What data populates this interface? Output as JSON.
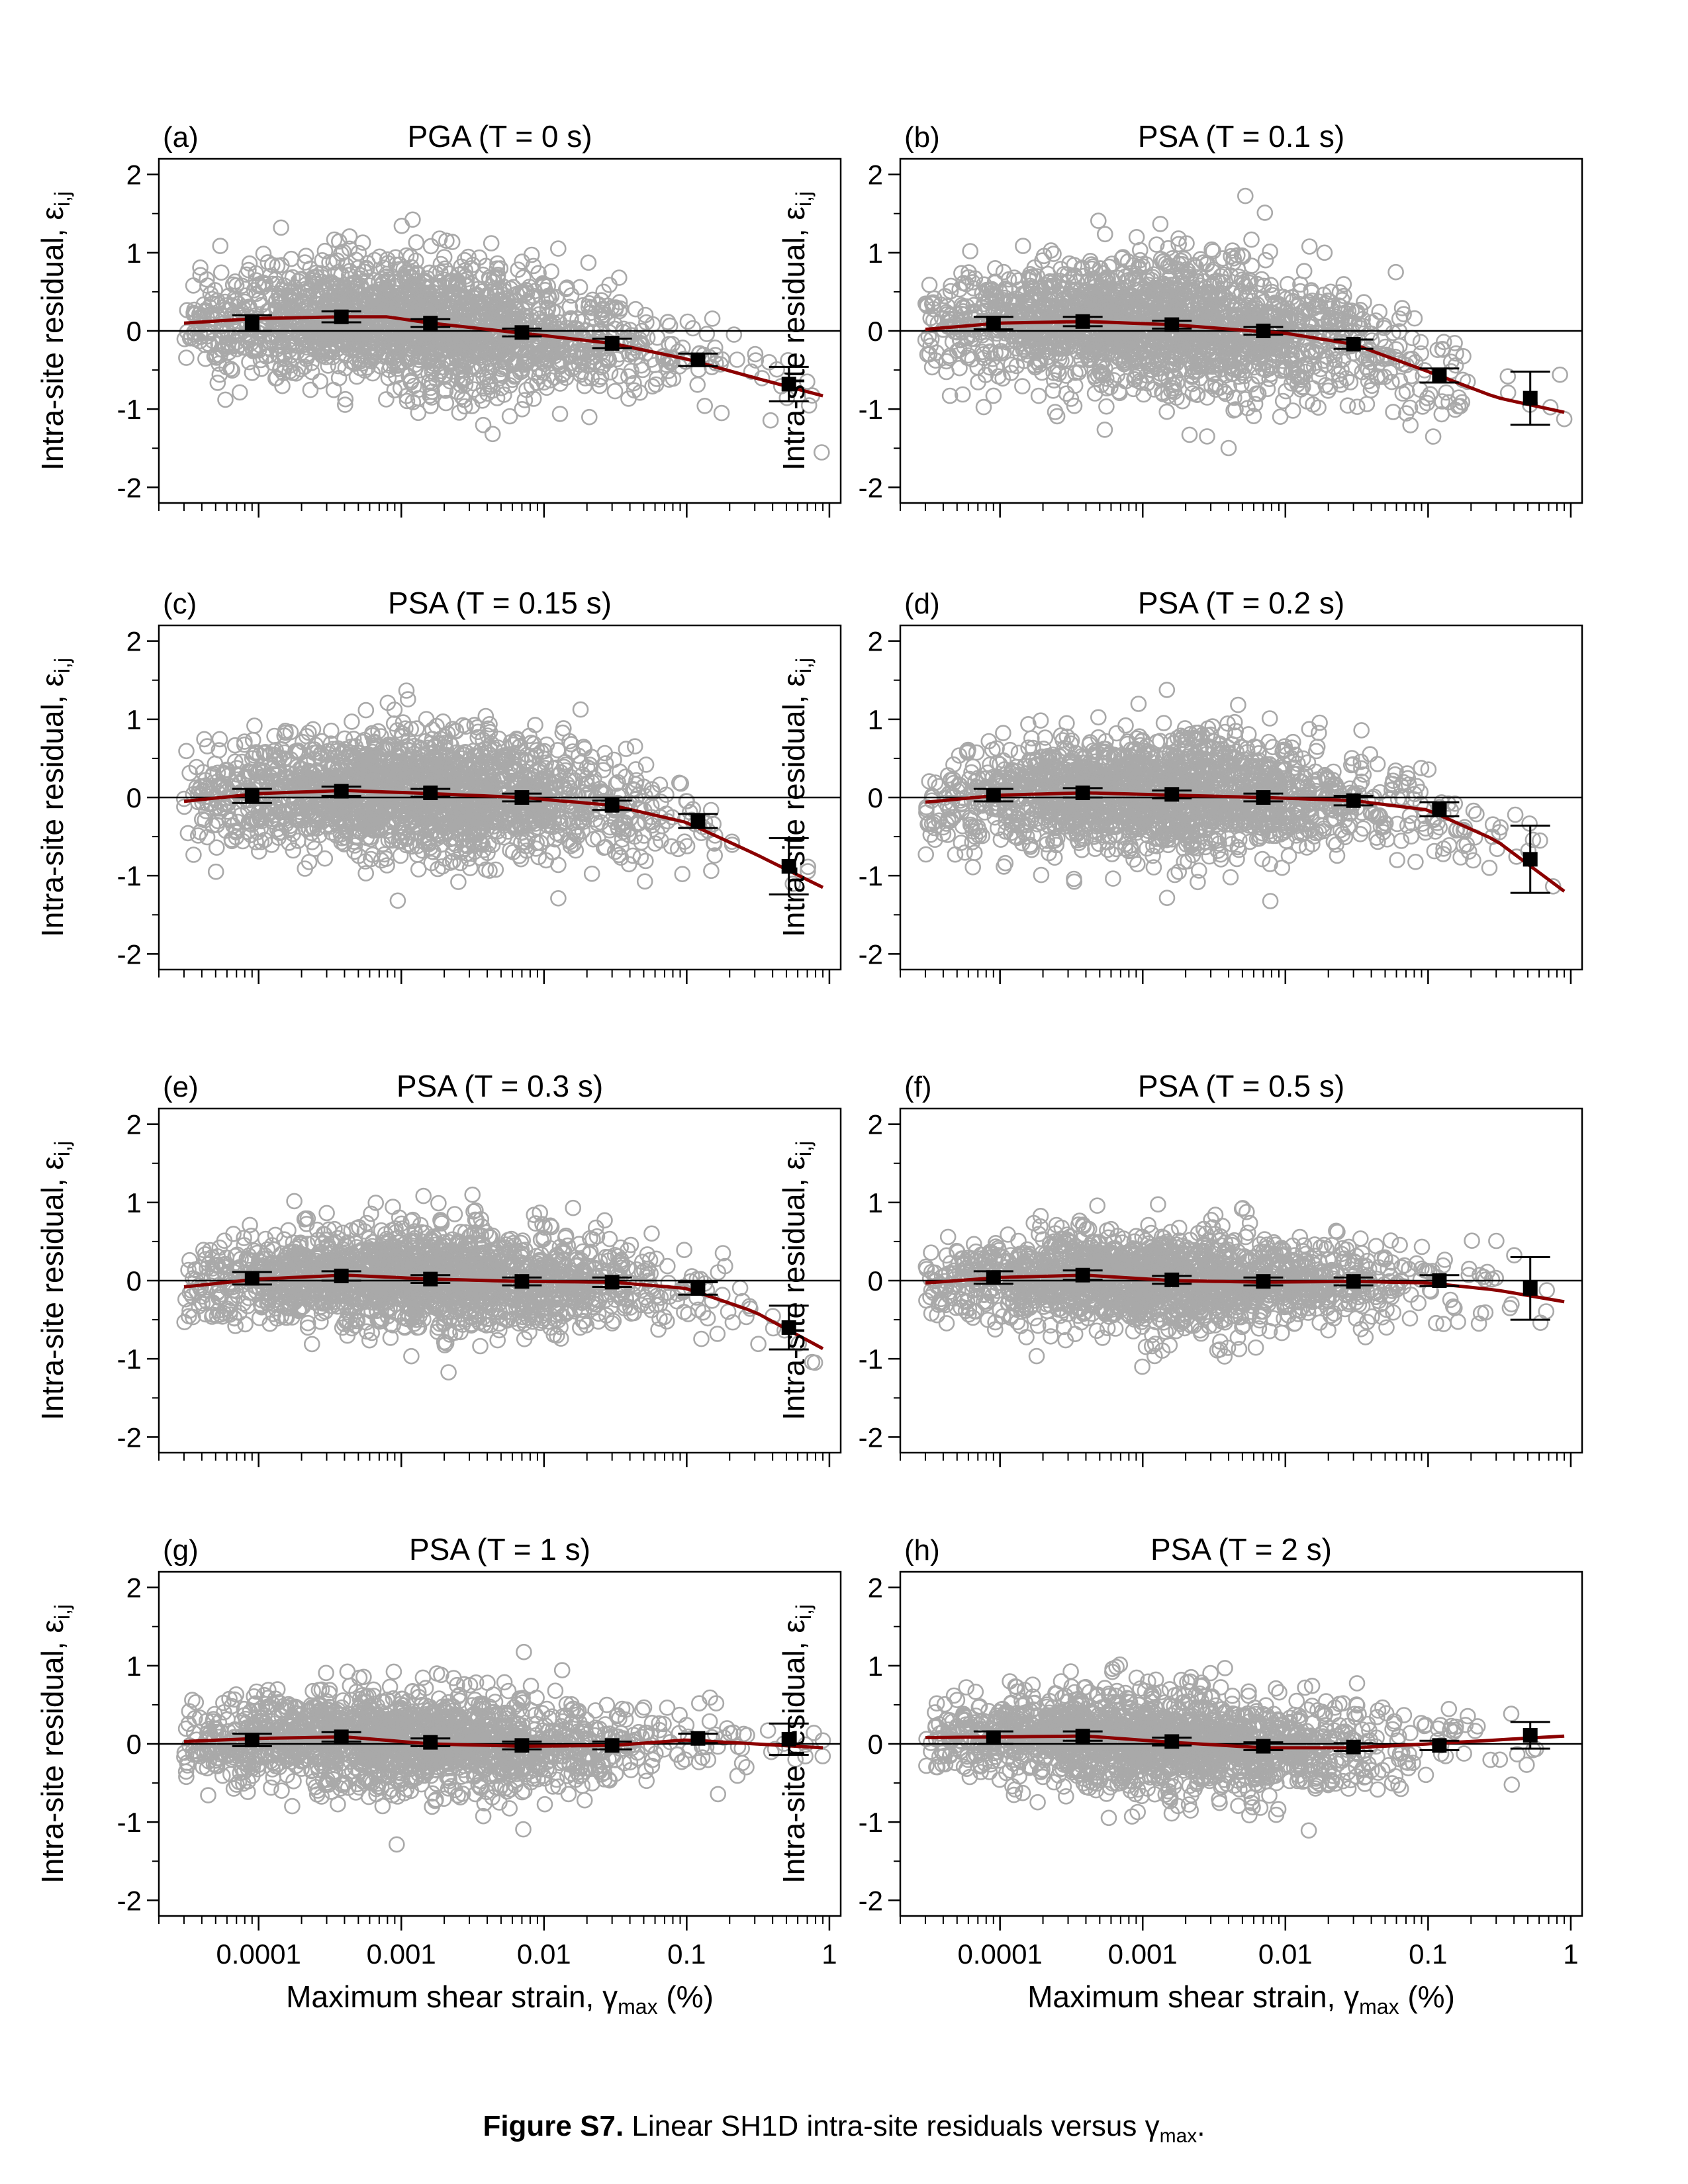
{
  "figure": {
    "caption_bold": "Figure S7.",
    "caption_text": " Linear SH1D intra-site residuals versus ",
    "caption_symbol": "γ",
    "caption_sub": "max",
    "caption_end": ".",
    "ylabel_main": "Intra-site residual, ",
    "ylabel_symbol": "ε",
    "ylabel_sub": "i,j",
    "xlabel_main": "Maximum shear strain, ",
    "xlabel_symbol": "γ",
    "xlabel_sub": "max",
    "xlabel_unit": " (%)"
  },
  "colors": {
    "scatter": "#a9a9a9",
    "fit": "#8b0000",
    "bin": "#000000"
  },
  "chart_data": [
    {
      "type": "scatter",
      "tag": "(a)",
      "title": "PGA (T = 0 s)",
      "xscale": "log",
      "xlim": [
        2e-05,
        1.2
      ],
      "ylim": [
        -2.2,
        2.2
      ],
      "xticks": [
        "0.0001",
        "0.001",
        "0.01",
        "0.1",
        "1"
      ],
      "yticks": [
        -2,
        -1,
        0,
        1,
        2
      ],
      "bins": [
        {
          "x": 9e-05,
          "y": 0.1,
          "e": 0.1
        },
        {
          "x": 0.00038,
          "y": 0.18,
          "e": 0.07
        },
        {
          "x": 0.0016,
          "y": 0.1,
          "e": 0.05
        },
        {
          "x": 0.007,
          "y": -0.02,
          "e": 0.05
        },
        {
          "x": 0.03,
          "y": -0.16,
          "e": 0.06
        },
        {
          "x": 0.12,
          "y": -0.37,
          "e": 0.08
        },
        {
          "x": 0.52,
          "y": -0.68,
          "e": 0.22
        }
      ],
      "fit": [
        [
          3e-05,
          0.1
        ],
        [
          0.0001,
          0.16
        ],
        [
          0.0004,
          0.18
        ],
        [
          0.0008,
          0.18
        ],
        [
          0.0016,
          0.1
        ],
        [
          0.004,
          0.02
        ],
        [
          0.01,
          -0.06
        ],
        [
          0.03,
          -0.16
        ],
        [
          0.1,
          -0.36
        ],
        [
          0.3,
          -0.6
        ],
        [
          0.9,
          -0.83
        ]
      ],
      "cloud": {
        "center": 0.0,
        "spread": 0.42,
        "n": 1900
      }
    },
    {
      "type": "scatter",
      "tag": "(b)",
      "title": "PSA (T = 0.1 s)",
      "xscale": "log",
      "xlim": [
        2e-05,
        1.2
      ],
      "ylim": [
        -2.2,
        2.2
      ],
      "xticks": [
        "0.0001",
        "0.001",
        "0.01",
        "0.1",
        "1"
      ],
      "yticks": [
        -2,
        -1,
        0,
        1,
        2
      ],
      "bins": [
        {
          "x": 9e-05,
          "y": 0.1,
          "e": 0.08
        },
        {
          "x": 0.00038,
          "y": 0.12,
          "e": 0.06
        },
        {
          "x": 0.0016,
          "y": 0.08,
          "e": 0.05
        },
        {
          "x": 0.007,
          "y": 0.0,
          "e": 0.05
        },
        {
          "x": 0.03,
          "y": -0.17,
          "e": 0.06
        },
        {
          "x": 0.12,
          "y": -0.57,
          "e": 0.09
        },
        {
          "x": 0.52,
          "y": -0.86,
          "e": 0.34
        }
      ],
      "fit": [
        [
          3e-05,
          0.02
        ],
        [
          0.0001,
          0.1
        ],
        [
          0.0004,
          0.12
        ],
        [
          0.0016,
          0.08
        ],
        [
          0.005,
          0.01
        ],
        [
          0.01,
          -0.03
        ],
        [
          0.03,
          -0.17
        ],
        [
          0.1,
          -0.52
        ],
        [
          0.3,
          -0.85
        ],
        [
          0.9,
          -1.04
        ]
      ],
      "cloud": {
        "center": 0.0,
        "spread": 0.45,
        "n": 1900
      }
    },
    {
      "type": "scatter",
      "tag": "(c)",
      "title": "PSA (T = 0.15 s)",
      "xscale": "log",
      "xlim": [
        2e-05,
        1.2
      ],
      "ylim": [
        -2.2,
        2.2
      ],
      "xticks": [
        "0.0001",
        "0.001",
        "0.01",
        "0.1",
        "1"
      ],
      "yticks": [
        -2,
        -1,
        0,
        1,
        2
      ],
      "bins": [
        {
          "x": 9e-05,
          "y": 0.02,
          "e": 0.09
        },
        {
          "x": 0.00038,
          "y": 0.08,
          "e": 0.06
        },
        {
          "x": 0.0016,
          "y": 0.06,
          "e": 0.05
        },
        {
          "x": 0.007,
          "y": 0.0,
          "e": 0.05
        },
        {
          "x": 0.03,
          "y": -0.1,
          "e": 0.06
        },
        {
          "x": 0.12,
          "y": -0.3,
          "e": 0.09
        },
        {
          "x": 0.52,
          "y": -0.88,
          "e": 0.36
        }
      ],
      "fit": [
        [
          3e-05,
          -0.05
        ],
        [
          0.0001,
          0.05
        ],
        [
          0.0004,
          0.09
        ],
        [
          0.0016,
          0.05
        ],
        [
          0.007,
          0.0
        ],
        [
          0.03,
          -0.1
        ],
        [
          0.1,
          -0.32
        ],
        [
          0.3,
          -0.72
        ],
        [
          0.9,
          -1.15
        ]
      ],
      "cloud": {
        "center": 0.0,
        "spread": 0.42,
        "n": 1900
      }
    },
    {
      "type": "scatter",
      "tag": "(d)",
      "title": "PSA (T = 0.2 s)",
      "xscale": "log",
      "xlim": [
        2e-05,
        1.2
      ],
      "ylim": [
        -2.2,
        2.2
      ],
      "xticks": [
        "0.0001",
        "0.001",
        "0.01",
        "0.1",
        "1"
      ],
      "yticks": [
        -2,
        -1,
        0,
        1,
        2
      ],
      "bins": [
        {
          "x": 9e-05,
          "y": 0.03,
          "e": 0.08
        },
        {
          "x": 0.00038,
          "y": 0.06,
          "e": 0.06
        },
        {
          "x": 0.0016,
          "y": 0.04,
          "e": 0.05
        },
        {
          "x": 0.007,
          "y": 0.0,
          "e": 0.05
        },
        {
          "x": 0.03,
          "y": -0.04,
          "e": 0.06
        },
        {
          "x": 0.12,
          "y": -0.15,
          "e": 0.09
        },
        {
          "x": 0.52,
          "y": -0.79,
          "e": 0.43
        }
      ],
      "fit": [
        [
          3e-05,
          -0.06
        ],
        [
          0.0001,
          0.03
        ],
        [
          0.0004,
          0.06
        ],
        [
          0.0016,
          0.03
        ],
        [
          0.007,
          0.0
        ],
        [
          0.03,
          -0.04
        ],
        [
          0.1,
          -0.16
        ],
        [
          0.3,
          -0.55
        ],
        [
          0.9,
          -1.2
        ]
      ],
      "cloud": {
        "center": 0.0,
        "spread": 0.4,
        "n": 1800
      }
    },
    {
      "type": "scatter",
      "tag": "(e)",
      "title": "PSA (T = 0.3 s)",
      "xscale": "log",
      "xlim": [
        2e-05,
        1.2
      ],
      "ylim": [
        -2.2,
        2.2
      ],
      "xticks": [
        "0.0001",
        "0.001",
        "0.01",
        "0.1",
        "1"
      ],
      "yticks": [
        -2,
        -1,
        0,
        1,
        2
      ],
      "bins": [
        {
          "x": 9e-05,
          "y": 0.03,
          "e": 0.08
        },
        {
          "x": 0.00038,
          "y": 0.06,
          "e": 0.06
        },
        {
          "x": 0.0016,
          "y": 0.02,
          "e": 0.05
        },
        {
          "x": 0.007,
          "y": -0.01,
          "e": 0.05
        },
        {
          "x": 0.03,
          "y": -0.02,
          "e": 0.06
        },
        {
          "x": 0.12,
          "y": -0.1,
          "e": 0.08
        },
        {
          "x": 0.52,
          "y": -0.6,
          "e": 0.28
        }
      ],
      "fit": [
        [
          3e-05,
          -0.08
        ],
        [
          0.0001,
          0.02
        ],
        [
          0.0004,
          0.07
        ],
        [
          0.0016,
          0.02
        ],
        [
          0.007,
          -0.01
        ],
        [
          0.03,
          -0.02
        ],
        [
          0.1,
          -0.1
        ],
        [
          0.3,
          -0.4
        ],
        [
          0.9,
          -0.87
        ]
      ],
      "cloud": {
        "center": 0.0,
        "spread": 0.35,
        "n": 1800
      }
    },
    {
      "type": "scatter",
      "tag": "(f)",
      "title": "PSA (T = 0.5 s)",
      "xscale": "log",
      "xlim": [
        2e-05,
        1.2
      ],
      "ylim": [
        -2.2,
        2.2
      ],
      "xticks": [
        "0.0001",
        "0.001",
        "0.01",
        "0.1",
        "1"
      ],
      "yticks": [
        -2,
        -1,
        0,
        1,
        2
      ],
      "bins": [
        {
          "x": 9e-05,
          "y": 0.04,
          "e": 0.08
        },
        {
          "x": 0.00038,
          "y": 0.07,
          "e": 0.06
        },
        {
          "x": 0.0016,
          "y": 0.01,
          "e": 0.05
        },
        {
          "x": 0.007,
          "y": -0.01,
          "e": 0.05
        },
        {
          "x": 0.03,
          "y": -0.01,
          "e": 0.05
        },
        {
          "x": 0.12,
          "y": 0.0,
          "e": 0.07
        },
        {
          "x": 0.52,
          "y": -0.1,
          "e": 0.4
        }
      ],
      "fit": [
        [
          3e-05,
          -0.03
        ],
        [
          0.0001,
          0.04
        ],
        [
          0.0004,
          0.07
        ],
        [
          0.0016,
          0.0
        ],
        [
          0.007,
          -0.02
        ],
        [
          0.03,
          -0.01
        ],
        [
          0.1,
          -0.03
        ],
        [
          0.3,
          -0.12
        ],
        [
          0.9,
          -0.27
        ]
      ],
      "cloud": {
        "center": 0.0,
        "spread": 0.33,
        "n": 1700
      }
    },
    {
      "type": "scatter",
      "tag": "(g)",
      "title": "PSA (T = 1 s)",
      "xscale": "log",
      "xlim": [
        2e-05,
        1.2
      ],
      "ylim": [
        -2.2,
        2.2
      ],
      "xticks": [
        "0.0001",
        "0.001",
        "0.01",
        "0.1",
        "1"
      ],
      "yticks": [
        -2,
        -1,
        0,
        1,
        2
      ],
      "bins": [
        {
          "x": 9e-05,
          "y": 0.05,
          "e": 0.08
        },
        {
          "x": 0.00038,
          "y": 0.09,
          "e": 0.06
        },
        {
          "x": 0.0016,
          "y": 0.02,
          "e": 0.05
        },
        {
          "x": 0.007,
          "y": -0.02,
          "e": 0.05
        },
        {
          "x": 0.03,
          "y": -0.02,
          "e": 0.05
        },
        {
          "x": 0.12,
          "y": 0.07,
          "e": 0.06
        },
        {
          "x": 0.52,
          "y": 0.06,
          "e": 0.2
        }
      ],
      "fit": [
        [
          3e-05,
          0.03
        ],
        [
          0.0001,
          0.07
        ],
        [
          0.0004,
          0.09
        ],
        [
          0.0016,
          0.0
        ],
        [
          0.007,
          -0.03
        ],
        [
          0.03,
          -0.02
        ],
        [
          0.1,
          0.05
        ],
        [
          0.3,
          0.0
        ],
        [
          0.9,
          -0.05
        ]
      ],
      "cloud": {
        "center": 0.0,
        "spread": 0.33,
        "n": 1700
      }
    },
    {
      "type": "scatter",
      "tag": "(h)",
      "title": "PSA (T = 2 s)",
      "xscale": "log",
      "xlim": [
        2e-05,
        1.2
      ],
      "ylim": [
        -2.2,
        2.2
      ],
      "xticks": [
        "0.0001",
        "0.001",
        "0.01",
        "0.1",
        "1"
      ],
      "yticks": [
        -2,
        -1,
        0,
        1,
        2
      ],
      "bins": [
        {
          "x": 9e-05,
          "y": 0.08,
          "e": 0.08
        },
        {
          "x": 0.00038,
          "y": 0.1,
          "e": 0.06
        },
        {
          "x": 0.0016,
          "y": 0.03,
          "e": 0.05
        },
        {
          "x": 0.007,
          "y": -0.03,
          "e": 0.05
        },
        {
          "x": 0.03,
          "y": -0.04,
          "e": 0.05
        },
        {
          "x": 0.12,
          "y": -0.02,
          "e": 0.06
        },
        {
          "x": 0.52,
          "y": 0.11,
          "e": 0.17
        }
      ],
      "fit": [
        [
          3e-05,
          0.08
        ],
        [
          0.0001,
          0.09
        ],
        [
          0.0004,
          0.1
        ],
        [
          0.0016,
          0.02
        ],
        [
          0.007,
          -0.05
        ],
        [
          0.03,
          -0.05
        ],
        [
          0.1,
          0.0
        ],
        [
          0.3,
          0.05
        ],
        [
          0.9,
          0.1
        ]
      ],
      "cloud": {
        "center": 0.0,
        "spread": 0.34,
        "n": 1700
      }
    }
  ]
}
